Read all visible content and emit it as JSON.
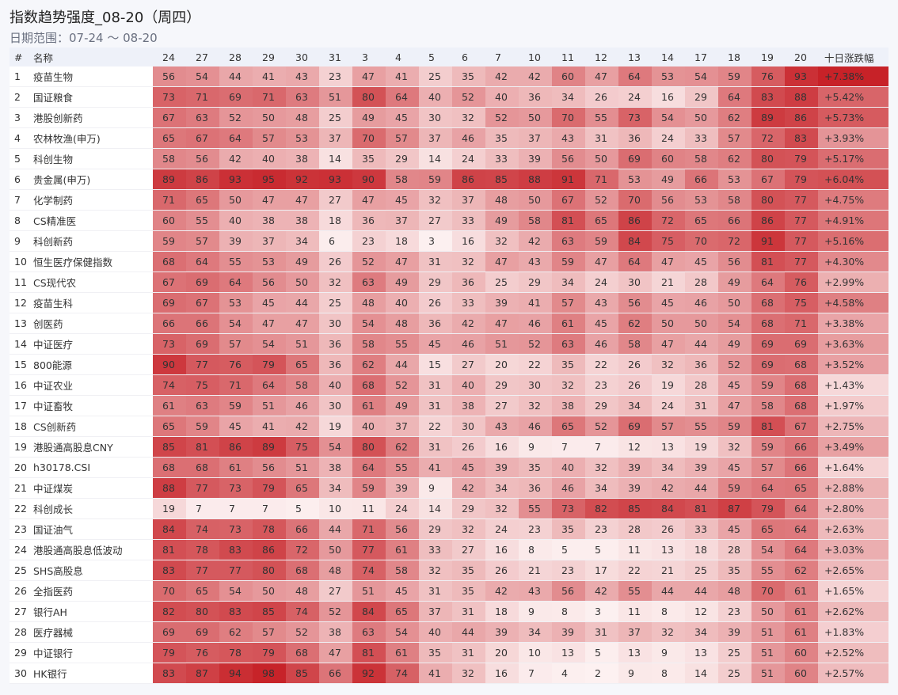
{
  "header": {
    "title": "指数趋势强度_08-20（周四）",
    "subtitle": "日期范围：07-24 ～ 08-20"
  },
  "table": {
    "columns": [
      "#",
      "名称",
      "24",
      "27",
      "28",
      "29",
      "30",
      "31",
      "3",
      "4",
      "5",
      "6",
      "7",
      "10",
      "11",
      "12",
      "13",
      "14",
      "17",
      "18",
      "19",
      "20",
      "十日涨跌幅"
    ],
    "rows": [
      [
        1,
        "疫苗生物",
        56,
        54,
        44,
        41,
        43,
        23,
        47,
        41,
        25,
        35,
        42,
        42,
        60,
        47,
        64,
        53,
        54,
        59,
        76,
        93,
        "+7.38%"
      ],
      [
        2,
        "国证粮食",
        73,
        71,
        69,
        71,
        63,
        51,
        80,
        64,
        40,
        52,
        40,
        36,
        34,
        26,
        24,
        16,
        29,
        64,
        83,
        88,
        "+5.42%"
      ],
      [
        3,
        "港股创新药",
        67,
        63,
        52,
        50,
        48,
        25,
        49,
        45,
        30,
        32,
        52,
        50,
        70,
        55,
        73,
        54,
        50,
        62,
        89,
        86,
        "+5.73%"
      ],
      [
        4,
        "农林牧渔(申万)",
        65,
        67,
        64,
        57,
        53,
        37,
        70,
        57,
        37,
        46,
        35,
        37,
        43,
        31,
        36,
        24,
        33,
        57,
        72,
        83,
        "+3.93%"
      ],
      [
        5,
        "科创生物",
        58,
        56,
        42,
        40,
        38,
        14,
        35,
        29,
        14,
        24,
        33,
        39,
        56,
        50,
        69,
        60,
        58,
        62,
        80,
        79,
        "+5.17%"
      ],
      [
        6,
        "贵金属(申万)",
        89,
        86,
        93,
        95,
        92,
        93,
        90,
        58,
        59,
        86,
        85,
        88,
        91,
        71,
        53,
        49,
        66,
        53,
        67,
        79,
        "+6.04%"
      ],
      [
        7,
        "化学制药",
        71,
        65,
        50,
        47,
        47,
        27,
        47,
        45,
        32,
        37,
        48,
        50,
        67,
        52,
        70,
        56,
        53,
        58,
        80,
        77,
        "+4.75%"
      ],
      [
        8,
        "CS精准医",
        60,
        55,
        40,
        38,
        38,
        18,
        36,
        37,
        27,
        33,
        49,
        58,
        81,
        65,
        86,
        72,
        65,
        66,
        86,
        77,
        "+4.91%"
      ],
      [
        9,
        "科创新药",
        59,
        57,
        39,
        37,
        34,
        6,
        23,
        18,
        3,
        16,
        32,
        42,
        63,
        59,
        84,
        75,
        70,
        72,
        91,
        77,
        "+5.16%"
      ],
      [
        10,
        "恒生医疗保健指数",
        68,
        64,
        55,
        53,
        49,
        26,
        52,
        47,
        31,
        32,
        47,
        43,
        59,
        47,
        64,
        47,
        45,
        56,
        81,
        77,
        "+4.30%"
      ],
      [
        11,
        "CS现代农",
        67,
        69,
        64,
        56,
        50,
        32,
        63,
        49,
        29,
        36,
        25,
        29,
        34,
        24,
        30,
        21,
        28,
        49,
        64,
        76,
        "+2.99%"
      ],
      [
        12,
        "疫苗生科",
        69,
        67,
        53,
        45,
        44,
        25,
        48,
        40,
        26,
        33,
        39,
        41,
        57,
        43,
        56,
        45,
        46,
        50,
        68,
        75,
        "+4.58%"
      ],
      [
        13,
        "创医药",
        66,
        66,
        54,
        47,
        47,
        30,
        54,
        48,
        36,
        42,
        47,
        46,
        61,
        45,
        62,
        50,
        50,
        54,
        68,
        71,
        "+3.38%"
      ],
      [
        14,
        "中证医疗",
        73,
        69,
        57,
        54,
        51,
        36,
        58,
        55,
        45,
        46,
        51,
        52,
        63,
        46,
        58,
        47,
        44,
        49,
        69,
        69,
        "+3.63%"
      ],
      [
        15,
        "800能源",
        90,
        77,
        76,
        79,
        65,
        36,
        62,
        44,
        15,
        27,
        20,
        22,
        35,
        22,
        26,
        32,
        36,
        52,
        69,
        68,
        "+3.52%"
      ],
      [
        16,
        "中证农业",
        74,
        75,
        71,
        64,
        58,
        40,
        68,
        52,
        31,
        40,
        29,
        30,
        32,
        23,
        26,
        19,
        28,
        45,
        59,
        68,
        "+1.43%"
      ],
      [
        17,
        "中证畜牧",
        61,
        63,
        59,
        51,
        46,
        30,
        61,
        49,
        31,
        38,
        27,
        32,
        38,
        29,
        34,
        24,
        31,
        47,
        58,
        68,
        "+1.97%"
      ],
      [
        18,
        "CS创新药",
        65,
        59,
        45,
        41,
        42,
        19,
        40,
        37,
        22,
        30,
        43,
        46,
        65,
        52,
        69,
        57,
        55,
        59,
        81,
        67,
        "+2.75%"
      ],
      [
        19,
        "港股通高股息CNY",
        85,
        81,
        86,
        89,
        75,
        54,
        80,
        62,
        31,
        26,
        16,
        9,
        7,
        7,
        12,
        13,
        19,
        32,
        59,
        66,
        "+3.49%"
      ],
      [
        20,
        "h30178.CSI",
        68,
        68,
        61,
        56,
        51,
        38,
        64,
        55,
        41,
        45,
        39,
        35,
        40,
        32,
        39,
        34,
        39,
        45,
        57,
        66,
        "+1.64%"
      ],
      [
        21,
        "中证煤炭",
        88,
        77,
        73,
        79,
        65,
        34,
        59,
        39,
        9,
        42,
        34,
        36,
        46,
        34,
        39,
        42,
        44,
        59,
        64,
        65,
        "+2.88%"
      ],
      [
        22,
        "科创成长",
        19,
        7,
        7,
        7,
        5,
        10,
        11,
        24,
        14,
        29,
        32,
        55,
        73,
        82,
        85,
        84,
        81,
        87,
        79,
        64,
        "+2.80%"
      ],
      [
        23,
        "国证油气",
        84,
        74,
        73,
        78,
        66,
        44,
        71,
        56,
        29,
        32,
        24,
        23,
        35,
        23,
        28,
        26,
        33,
        45,
        65,
        64,
        "+2.63%"
      ],
      [
        24,
        "港股通高股息低波动",
        81,
        78,
        83,
        86,
        72,
        50,
        77,
        61,
        33,
        27,
        16,
        8,
        5,
        5,
        11,
        13,
        18,
        28,
        54,
        64,
        "+3.03%"
      ],
      [
        25,
        "SHS高股息",
        83,
        77,
        77,
        80,
        68,
        48,
        74,
        58,
        32,
        35,
        26,
        21,
        23,
        17,
        22,
        21,
        25,
        35,
        55,
        62,
        "+2.65%"
      ],
      [
        26,
        "全指医药",
        70,
        65,
        54,
        50,
        48,
        27,
        51,
        45,
        31,
        35,
        42,
        43,
        56,
        42,
        55,
        44,
        44,
        48,
        70,
        61,
        "+1.65%"
      ],
      [
        27,
        "银行AH",
        82,
        80,
        83,
        85,
        74,
        52,
        84,
        65,
        37,
        31,
        18,
        9,
        8,
        3,
        11,
        8,
        12,
        23,
        50,
        61,
        "+2.62%"
      ],
      [
        28,
        "医疗器械",
        69,
        69,
        62,
        57,
        52,
        38,
        63,
        54,
        40,
        44,
        39,
        34,
        39,
        31,
        37,
        32,
        34,
        39,
        51,
        61,
        "+1.83%"
      ],
      [
        29,
        "中证银行",
        79,
        76,
        78,
        79,
        68,
        47,
        81,
        61,
        35,
        31,
        20,
        10,
        13,
        5,
        13,
        9,
        13,
        25,
        51,
        60,
        "+2.52%"
      ],
      [
        30,
        "HK银行",
        83,
        87,
        94,
        98,
        85,
        66,
        92,
        74,
        41,
        32,
        16,
        7,
        4,
        2,
        9,
        8,
        14,
        25,
        51,
        60,
        "+2.57%"
      ]
    ]
  }
}
